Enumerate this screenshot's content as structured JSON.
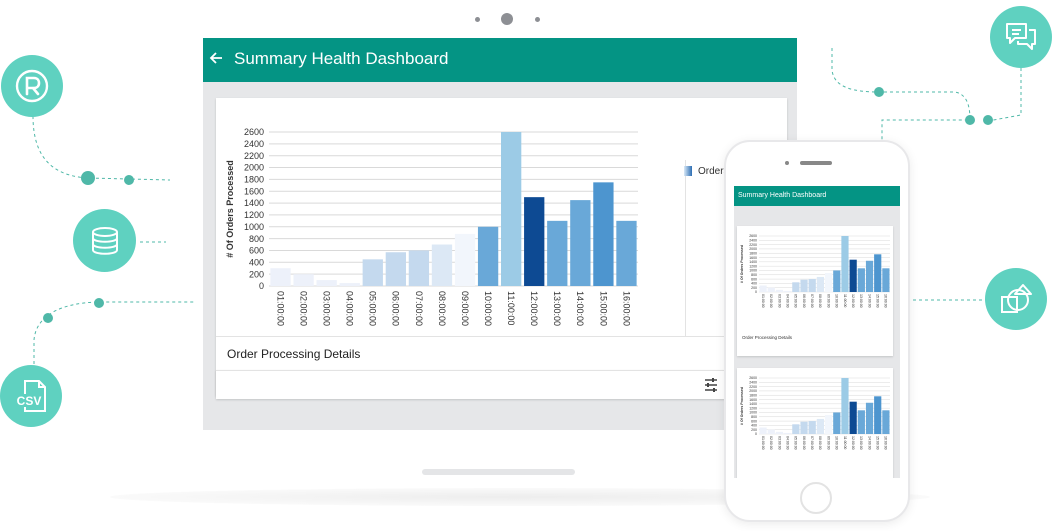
{
  "dashboard": {
    "back_icon": "arrow-left-icon",
    "title": "Summary Health Dashboard",
    "legend_label": "Orders Processed",
    "details_title": "Order Processing Details",
    "filter_icon": "tune-icon"
  },
  "mobile": {
    "title": "Summary Health Dashboard",
    "details_title": "Order Processing Details"
  },
  "integrations": [
    {
      "name": "R",
      "icon": "r-language-icon"
    },
    {
      "name": "database",
      "icon": "database-icon"
    },
    {
      "name": "CSV",
      "icon": "csv-file-icon"
    },
    {
      "name": "chat",
      "icon": "chat-icon"
    },
    {
      "name": "shapes",
      "icon": "shapes-icon"
    }
  ],
  "colors": {
    "app_bar": "#049484",
    "accent_circle": "#5fd1c0",
    "connector": "#4fb8a8"
  },
  "chart_data": {
    "type": "bar",
    "title": "",
    "xlabel": "",
    "ylabel": "# Of Orders Processed",
    "legend": [
      "Orders Processed"
    ],
    "categories": [
      "01:00:00",
      "02:00:00",
      "03:00:00",
      "04:00:00",
      "05:00:00",
      "06:00:00",
      "07:00:00",
      "08:00:00",
      "09:00:00",
      "10:00:00",
      "11:00:00",
      "12:00:00",
      "13:00:00",
      "14:00:00",
      "15:00:00",
      "16:00:00"
    ],
    "values": [
      300,
      200,
      100,
      50,
      450,
      570,
      600,
      700,
      880,
      1000,
      2600,
      1500,
      1100,
      1450,
      1750,
      1100
    ],
    "bar_colors": [
      "#edf1fa",
      "#edf1fa",
      "#edf1fa",
      "#edf1fa",
      "#c4d9ee",
      "#c4d9ee",
      "#c4d9ee",
      "#dce8f5",
      "#f2f6fc",
      "#69a8d8",
      "#9ccbe6",
      "#0d4a93",
      "#69a8d8",
      "#69a8d8",
      "#4d95cf",
      "#69a8d8"
    ],
    "yticks": [
      0,
      200,
      400,
      600,
      800,
      1000,
      1200,
      1400,
      1600,
      1800,
      2000,
      2200,
      2400,
      2600
    ],
    "ylim": [
      0,
      2600
    ],
    "grid": true
  }
}
